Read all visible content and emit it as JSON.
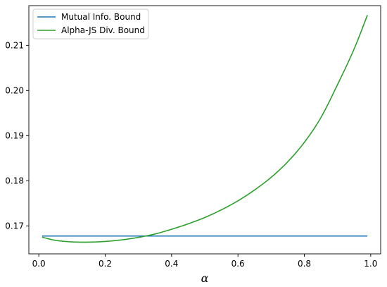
{
  "chart_data": {
    "type": "line",
    "xlabel": "α",
    "ylabel": "",
    "xlim": [
      -0.03,
      1.03
    ],
    "ylim": [
      0.1638,
      0.2188
    ],
    "xticks": [
      0.0,
      0.2,
      0.4,
      0.6,
      0.8,
      1.0
    ],
    "xtick_labels": [
      "0.0",
      "0.2",
      "0.4",
      "0.6",
      "0.8",
      "1.0"
    ],
    "yticks": [
      0.17,
      0.18,
      0.19,
      0.2,
      0.21
    ],
    "ytick_labels": [
      "0.17",
      "0.18",
      "0.19",
      "0.20",
      "0.21"
    ],
    "grid": false,
    "legend_position": "upper-left",
    "series": [
      {
        "name": "Mutual Info. Bound",
        "color": "#1f77b4",
        "x": [
          0.01,
          0.99
        ],
        "y": [
          0.16775,
          0.16775
        ]
      },
      {
        "name": "Alpha-JS Div. Bound",
        "color": "#2ca02c",
        "x": [
          0.01,
          0.05,
          0.1,
          0.15,
          0.2,
          0.25,
          0.3,
          0.35,
          0.4,
          0.45,
          0.5,
          0.55,
          0.6,
          0.65,
          0.7,
          0.75,
          0.8,
          0.85,
          0.9,
          0.95,
          0.99
        ],
        "y": [
          0.1675,
          0.1668,
          0.16645,
          0.1664,
          0.16655,
          0.1669,
          0.16745,
          0.1682,
          0.16925,
          0.17045,
          0.17185,
          0.17355,
          0.17555,
          0.17795,
          0.18075,
          0.1842,
          0.1885,
          0.194,
          0.2013,
          0.2092,
          0.2167
        ]
      }
    ]
  }
}
